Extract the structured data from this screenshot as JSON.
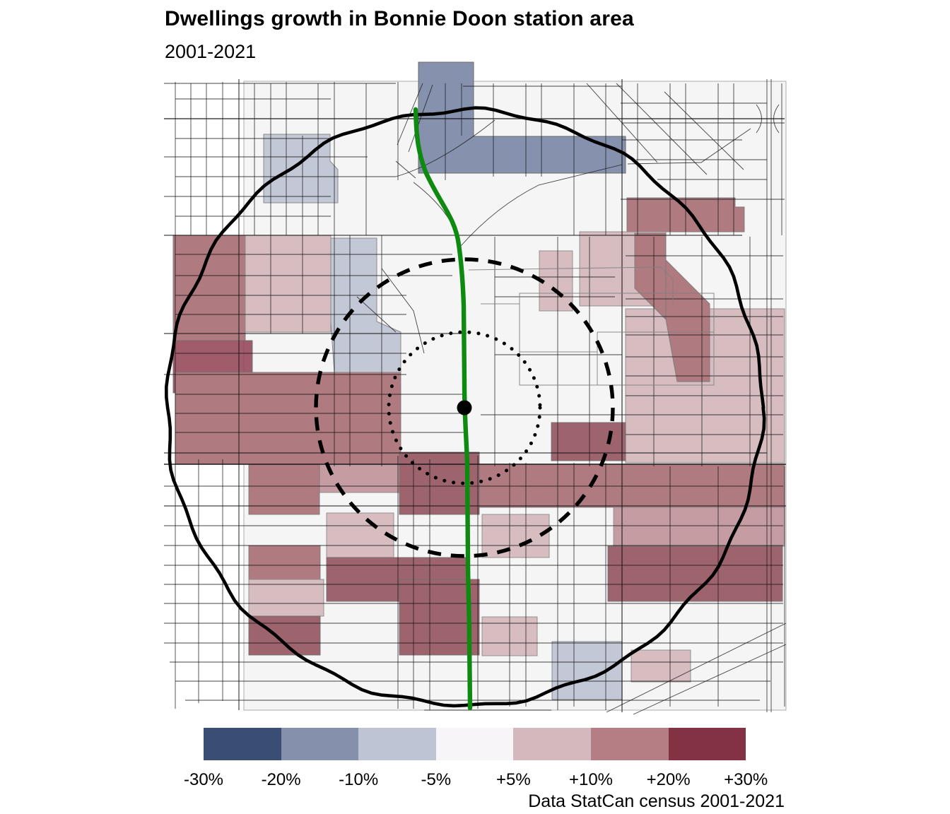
{
  "page": {
    "title": "Dwellings growth in Bonnie Doon station area",
    "subtitle": "2001-2021",
    "attribution": "Data StatCan census 2001-2021"
  },
  "legend": {
    "labels": [
      "-30%",
      "-20%",
      "-10%",
      "-5%",
      "+5%",
      "+10%",
      "+20%",
      "+30%"
    ],
    "colors": [
      "#3a4d73",
      "#8590ac",
      "#bec4d4",
      "#f7f5f7",
      "#d4b8bd",
      "#b47e84",
      "#823243"
    ]
  },
  "map": {
    "route_color": "#0e8a10",
    "ring_color": "#000000",
    "category_colors": {
      "minus20_to_minus10": "#8691ad",
      "minus10_to_minus5": "#c3c8d6",
      "minus5_to_plus5": "#f6f5f6",
      "plus5_to_plus10": "#d7bcc0",
      "plus10_to_plus20": "#b07a81",
      "plus20_to_plus30": "#8f3f50"
    }
  },
  "chart_data": {
    "type": "choropleth-map",
    "title": "Dwellings growth in Bonnie Doon station area",
    "subtitle": "2001-2021",
    "legend_breaks": [
      "-30%",
      "-20%",
      "-10%",
      "-5%",
      "+5%",
      "+10%",
      "+20%",
      "+30%"
    ],
    "legend_colors": [
      "#3a4d73",
      "#8590ac",
      "#bec4d4",
      "#f7f5f7",
      "#d4b8bd",
      "#b47e84",
      "#823243"
    ],
    "annotations": [
      "station marker with three concentric walking-distance rings",
      "green LRT line"
    ],
    "attribution": "Data StatCan census 2001-2021"
  }
}
